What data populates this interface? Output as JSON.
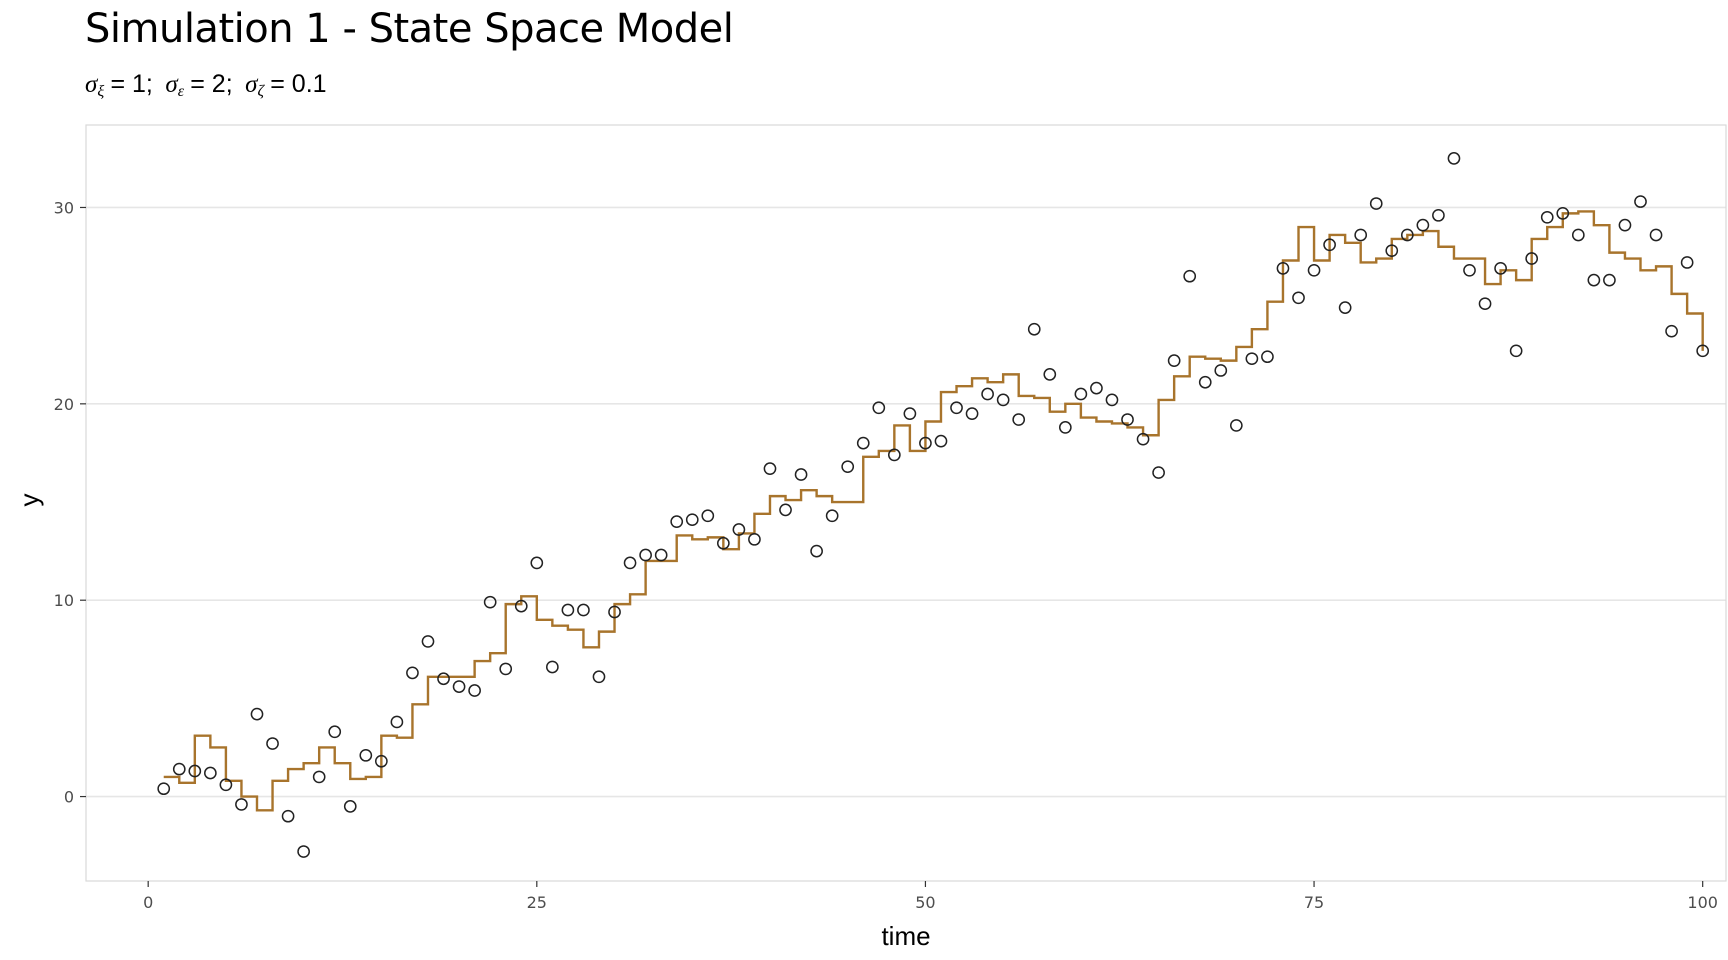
{
  "chart_data": {
    "type": "line",
    "title": "Simulation 1 - State Space Model",
    "subtitle": {
      "parts": [
        {
          "symbol": "σ",
          "sub": "ξ",
          "value": "= 1;"
        },
        {
          "symbol": "σ",
          "sub": "ε",
          "value": "= 2;"
        },
        {
          "symbol": "σ",
          "sub": "ζ",
          "value": "= 0.1"
        }
      ]
    },
    "xlabel": "time",
    "ylabel": "y",
    "xlim": [
      -4,
      101.5
    ],
    "ylim": [
      -4.3,
      34.2
    ],
    "x_ticks": [
      0,
      25,
      50,
      75,
      100
    ],
    "x_tick_labels": [
      "0",
      "25",
      "50",
      "75",
      "100"
    ],
    "y_ticks": [
      0,
      10,
      20,
      30
    ],
    "y_tick_labels": [
      "0",
      "10",
      "20",
      "30"
    ],
    "grid": "horizontal",
    "colors": {
      "state_line": "#A8742C",
      "points": "#222222",
      "gridline": "#E6E6E6",
      "panel_border": "#D9D9D9"
    },
    "series": [
      {
        "kind": "step",
        "values": [
          1.0,
          0.7,
          3.1,
          2.5,
          0.8,
          0.0,
          -0.7,
          0.8,
          1.4,
          1.7,
          2.5,
          1.7,
          0.9,
          1.0,
          3.1,
          3.0,
          4.7,
          6.1,
          6.1,
          6.1,
          6.9,
          7.3,
          9.8,
          10.2,
          9.0,
          8.7,
          8.5,
          7.6,
          8.4,
          9.8,
          10.3,
          12.0,
          12.0,
          13.3,
          13.1,
          13.2,
          12.6,
          13.4,
          14.4,
          15.3,
          15.1,
          15.6,
          15.3,
          15.0,
          15.0,
          17.3,
          17.6,
          18.9,
          17.6,
          19.1,
          20.6,
          20.9,
          21.3,
          21.1,
          21.5,
          20.4,
          20.3,
          19.6,
          20.0,
          19.3,
          19.1,
          19.0,
          18.8,
          18.4,
          20.2,
          21.4,
          22.4,
          22.3,
          22.2,
          22.9,
          23.8,
          25.2,
          27.3,
          29.0,
          27.3,
          28.6,
          28.2,
          27.2,
          27.4,
          28.4,
          28.6,
          28.8,
          28.0,
          27.4,
          27.4,
          26.1,
          26.8,
          26.3,
          28.4,
          29.0,
          29.7,
          29.8,
          29.1,
          27.7,
          27.4,
          26.8,
          27.0,
          25.6,
          24.6,
          22.7
        ]
      },
      {
        "kind": "points",
        "values": [
          0.4,
          1.4,
          1.3,
          1.2,
          0.6,
          -0.4,
          4.2,
          2.7,
          -1.0,
          -2.8,
          1.0,
          3.3,
          -0.5,
          2.1,
          1.8,
          3.8,
          6.3,
          7.9,
          6.0,
          5.6,
          5.4,
          9.9,
          6.5,
          9.7,
          11.9,
          6.6,
          9.5,
          9.5,
          6.1,
          9.4,
          11.9,
          12.3,
          12.3,
          14.0,
          14.1,
          14.3,
          12.9,
          13.6,
          13.1,
          16.7,
          14.6,
          16.4,
          12.5,
          14.3,
          16.8,
          18.0,
          19.8,
          17.4,
          19.5,
          18.0,
          18.1,
          19.8,
          19.5,
          20.5,
          20.2,
          19.2,
          23.8,
          21.5,
          18.8,
          20.5,
          20.8,
          20.2,
          19.2,
          18.2,
          16.5,
          22.2,
          26.5,
          21.1,
          21.7,
          18.9,
          22.3,
          22.4,
          26.9,
          25.4,
          26.8,
          28.1,
          24.9,
          28.6,
          30.2,
          27.8,
          28.6,
          29.1,
          29.6,
          32.5,
          26.8,
          25.1,
          26.9,
          22.7,
          27.4,
          29.5,
          29.7,
          28.6,
          26.3,
          26.3,
          29.1,
          30.3,
          28.6,
          23.7,
          27.2,
          22.7
        ]
      }
    ]
  }
}
